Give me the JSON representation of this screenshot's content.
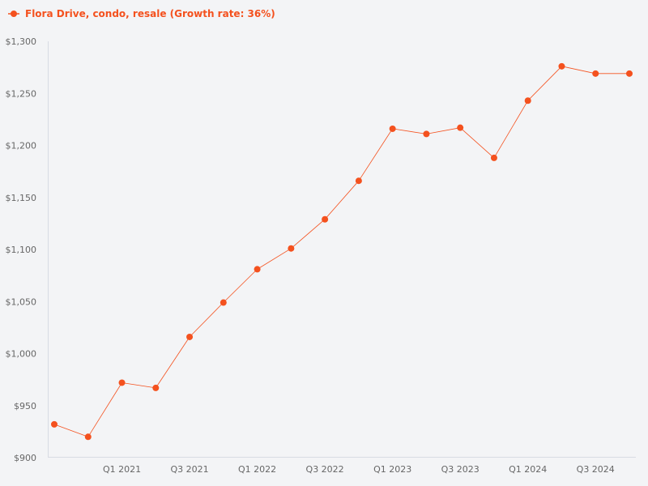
{
  "chart_data": {
    "type": "line",
    "title": "",
    "xlabel": "",
    "ylabel": "",
    "legend_position": "top-left",
    "grid": false,
    "x": [
      "Q3 2020",
      "Q4 2020",
      "Q1 2021",
      "Q2 2021",
      "Q3 2021",
      "Q4 2021",
      "Q1 2022",
      "Q2 2022",
      "Q3 2022",
      "Q4 2022",
      "Q1 2023",
      "Q2 2023",
      "Q3 2023",
      "Q4 2023",
      "Q1 2024",
      "Q2 2024",
      "Q3 2024",
      "Q4 2024"
    ],
    "x_tick_labels": [
      "Q1 2021",
      "Q3 2021",
      "Q1 2022",
      "Q3 2022",
      "Q1 2023",
      "Q3 2023",
      "Q1 2024",
      "Q3 2024"
    ],
    "ylim": [
      900,
      1300
    ],
    "y_ticks": [
      900,
      950,
      1000,
      1050,
      1100,
      1150,
      1200,
      1250,
      1300
    ],
    "y_tick_labels": [
      "$900",
      "$950",
      "$1,000",
      "$1,050",
      "$1,100",
      "$1,150",
      "$1,200",
      "$1,250",
      "$1,300"
    ],
    "series": [
      {
        "name": "Flora Drive, condo, resale (Growth rate: 36%)",
        "color": "#f4511e",
        "values": [
          932,
          920,
          972,
          967,
          1016,
          1049,
          1081,
          1101,
          1129,
          1166,
          1216,
          1211,
          1217,
          1188,
          1243,
          1276,
          1269,
          1269
        ]
      }
    ]
  }
}
